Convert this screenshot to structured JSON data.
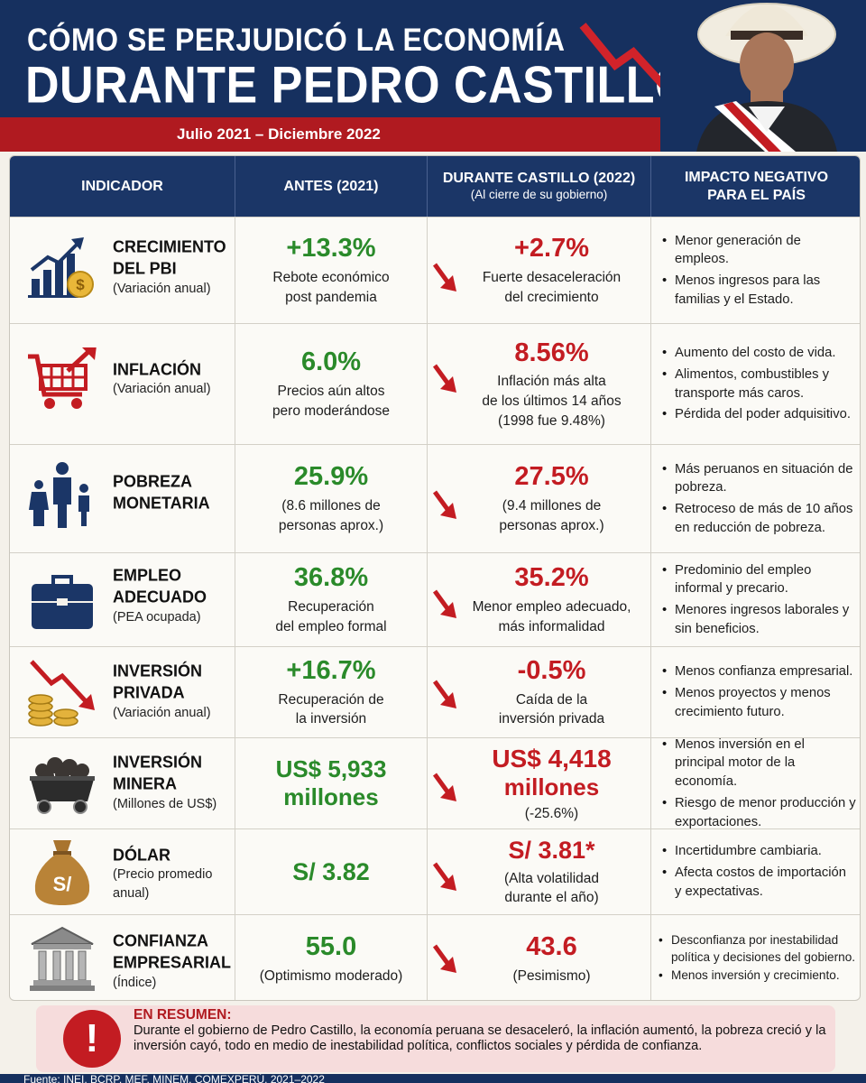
{
  "header": {
    "title_line1": "CÓMO SE PERJUDICÓ LA ECONOMÍA",
    "title_line2": "DURANTE PEDRO CASTILLO",
    "dates": "Julio 2021 – Diciembre 2022"
  },
  "columns": {
    "indicator": "INDICADOR",
    "before": "ANTES (2021)",
    "during": "DURANTE CASTILLO (2022)",
    "during_sub": "(Al cierre de su gobierno)",
    "impact_line1": "IMPACTO NEGATIVO",
    "impact_line2": "PARA EL PAÍS"
  },
  "rows": [
    {
      "icon": "bar-chart-growth-icon",
      "name_lines": [
        "CRECIMIENTO",
        "DEL PBI"
      ],
      "unit": "(Variación anual)",
      "before_value": "+13.3%",
      "before_desc": [
        "Rebote económico",
        "post pandemia"
      ],
      "during_value": "+2.7%",
      "during_desc": [
        "Fuerte desaceleración",
        "del crecimiento"
      ],
      "impacts": [
        "Menor generación de empleos.",
        "Menos ingresos para las familias y el Estado."
      ]
    },
    {
      "icon": "shopping-cart-icon",
      "name_lines": [
        "INFLACIÓN"
      ],
      "unit": "(Variación anual)",
      "before_value": "6.0%",
      "before_desc": [
        "Precios aún altos",
        "pero moderándose"
      ],
      "during_value": "8.56%",
      "during_desc": [
        "Inflación más alta",
        "de los últimos 14 años",
        "(1998 fue 9.48%)"
      ],
      "impacts": [
        "Aumento del costo de vida.",
        "Alimentos, combustibles y transporte más caros.",
        "Pérdida del poder adquisitivo."
      ]
    },
    {
      "icon": "family-icon",
      "name_lines": [
        "POBREZA",
        "MONETARIA"
      ],
      "unit": "",
      "before_value": "25.9%",
      "before_desc": [
        "(8.6 millones de",
        "personas aprox.)"
      ],
      "during_value": "27.5%",
      "during_desc": [
        "(9.4 millones de",
        "personas aprox.)"
      ],
      "impacts": [
        "Más peruanos en situación de pobreza.",
        "Retroceso de más de 10 años en reducción de pobreza."
      ]
    },
    {
      "icon": "briefcase-icon",
      "name_lines": [
        "EMPLEO",
        "ADECUADO"
      ],
      "unit": "(PEA ocupada)",
      "before_value": "36.8%",
      "before_desc": [
        "Recuperación",
        "del empleo formal"
      ],
      "during_value": "35.2%",
      "during_desc": [
        "Menor empleo adecuado,",
        "más informalidad"
      ],
      "impacts": [
        "Predominio del empleo informal y precario.",
        "Menores ingresos laborales y sin beneficios."
      ]
    },
    {
      "icon": "coins-falling-arrow-icon",
      "name_lines": [
        "INVERSIÓN",
        "PRIVADA"
      ],
      "unit": "(Variación anual)",
      "before_value": "+16.7%",
      "before_desc": [
        "Recuperación de",
        "la inversión"
      ],
      "during_value": "-0.5%",
      "during_desc": [
        "Caída de la",
        "inversión privada"
      ],
      "impacts": [
        "Menos confianza empresarial.",
        "Menos proyectos y menos crecimiento futuro."
      ]
    },
    {
      "icon": "mine-cart-icon",
      "name_lines": [
        "INVERSIÓN",
        "MINERA"
      ],
      "unit": "(Millones de US$)",
      "before_value_lines": [
        "US$ 5,933",
        "millones"
      ],
      "before_desc": [],
      "during_value_lines": [
        "US$ 4,418",
        "millones"
      ],
      "during_desc": [
        "(-25.6%)"
      ],
      "impacts": [
        "Menos inversión en el principal motor de la economía.",
        "Riesgo de menor producción y exportaciones."
      ]
    },
    {
      "icon": "money-bag-icon",
      "icon_label": "S/",
      "name_lines": [
        "DÓLAR"
      ],
      "unit_lines": [
        "(Precio promedio",
        "anual)"
      ],
      "before_value": "S/ 3.82",
      "before_desc": [],
      "during_value": "S/ 3.81*",
      "during_desc": [
        "(Alta volatilidad",
        "durante el año)"
      ],
      "impacts": [
        "Incertidumbre cambiaria.",
        "Afecta costos de importación y expectativas."
      ]
    },
    {
      "icon": "bank-building-icon",
      "name_lines": [
        "CONFIANZA",
        "EMPRESARIAL"
      ],
      "unit": "(Índice)",
      "before_value": "55.0",
      "before_desc": [
        "(Optimismo moderado)"
      ],
      "during_value": "43.6",
      "during_desc": [
        "(Pesimismo)"
      ],
      "impacts": [
        "Desconfianza por inestabilidad política y decisiones del gobierno.",
        "Menos inversión y crecimiento."
      ]
    }
  ],
  "summary": {
    "title": "EN RESUMEN:",
    "text": "Durante el gobierno de Pedro Castillo, la economía peruana se desaceleró, la inflación aumentó, la pobreza creció y la inversión cayó, todo en medio de inestabilidad política, conflictos sociales y pérdida de confianza.",
    "icon": "exclamation-icon",
    "icon_glyph": "!"
  },
  "footer": {
    "source": "Fuente: INEI, BCRP, MEF, MINEM, COMEXPERÚ, 2021–2022"
  },
  "colors": {
    "navy": "#16305f",
    "red": "#c31c22",
    "green": "#2a8a2a",
    "background": "#f4f1ea"
  }
}
